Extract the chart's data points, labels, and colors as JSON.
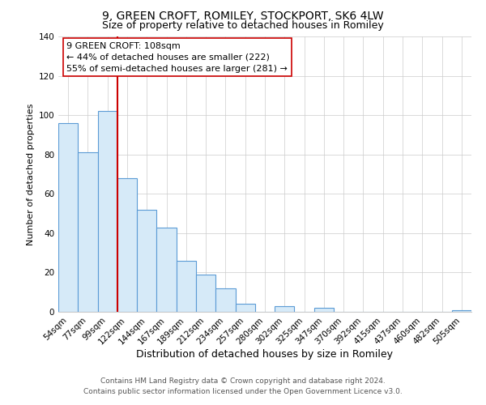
{
  "title": "9, GREEN CROFT, ROMILEY, STOCKPORT, SK6 4LW",
  "subtitle": "Size of property relative to detached houses in Romiley",
  "xlabel": "Distribution of detached houses by size in Romiley",
  "ylabel": "Number of detached properties",
  "bar_labels": [
    "54sqm",
    "77sqm",
    "99sqm",
    "122sqm",
    "144sqm",
    "167sqm",
    "189sqm",
    "212sqm",
    "234sqm",
    "257sqm",
    "280sqm",
    "302sqm",
    "325sqm",
    "347sqm",
    "370sqm",
    "392sqm",
    "415sqm",
    "437sqm",
    "460sqm",
    "482sqm",
    "505sqm"
  ],
  "bar_values": [
    96,
    81,
    102,
    68,
    52,
    43,
    26,
    19,
    12,
    4,
    0,
    3,
    0,
    2,
    0,
    0,
    0,
    0,
    0,
    0,
    1
  ],
  "bar_facecolor": "#d6eaf8",
  "bar_edgecolor": "#5b9bd5",
  "vline_color": "#cc0000",
  "vline_x_index": 2,
  "annotation_text": "9 GREEN CROFT: 108sqm\n← 44% of detached houses are smaller (222)\n55% of semi-detached houses are larger (281) →",
  "annotation_box_facecolor": "white",
  "annotation_box_edgecolor": "#cc0000",
  "ylim": [
    0,
    140
  ],
  "yticks": [
    0,
    20,
    40,
    60,
    80,
    100,
    120,
    140
  ],
  "footnote1": "Contains HM Land Registry data © Crown copyright and database right 2024.",
  "footnote2": "Contains public sector information licensed under the Open Government Licence v3.0.",
  "title_fontsize": 10,
  "subtitle_fontsize": 9,
  "xlabel_fontsize": 9,
  "ylabel_fontsize": 8,
  "tick_fontsize": 7.5,
  "annotation_fontsize": 8,
  "footnote_fontsize": 6.5,
  "bar_width": 1.0
}
